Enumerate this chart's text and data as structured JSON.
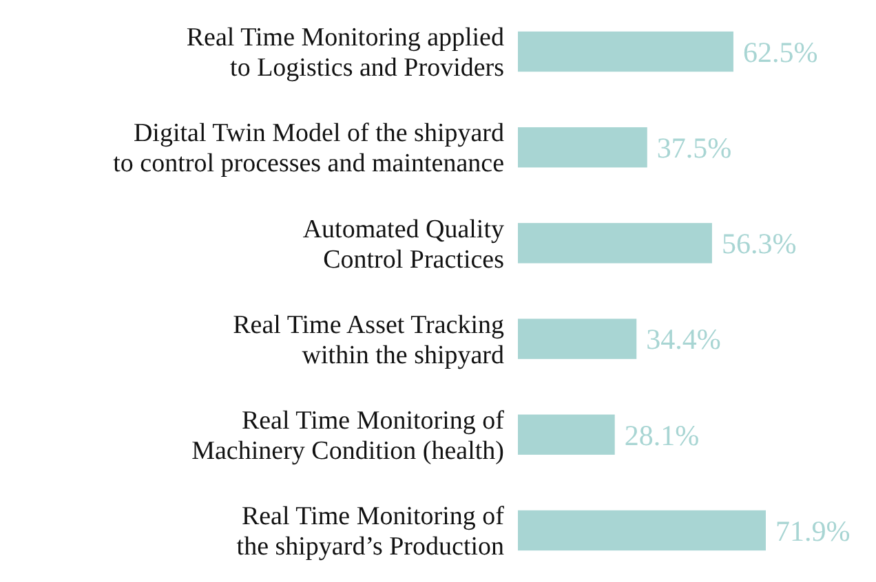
{
  "chart_data": {
    "type": "bar",
    "orientation": "horizontal",
    "color": "#a8d5d3",
    "categories": [
      "Real Time Monitoring applied\nto Logistics and Providers",
      "Digital Twin Model of the shipyard\nto control processes and maintenance",
      "Automated Quality\nControl Practices",
      "Real Time Asset Tracking\nwithin the shipyard",
      "Real Time Monitoring of\nMachinery Condition (health)",
      "Real Time Monitoring of\nthe shipyard’s Production"
    ],
    "values": [
      62.5,
      37.5,
      56.3,
      34.4,
      28.1,
      71.9
    ],
    "value_labels": [
      "62.5%",
      "37.5%",
      "56.3%",
      "34.4%",
      "28.1%",
      "71.9%"
    ]
  }
}
